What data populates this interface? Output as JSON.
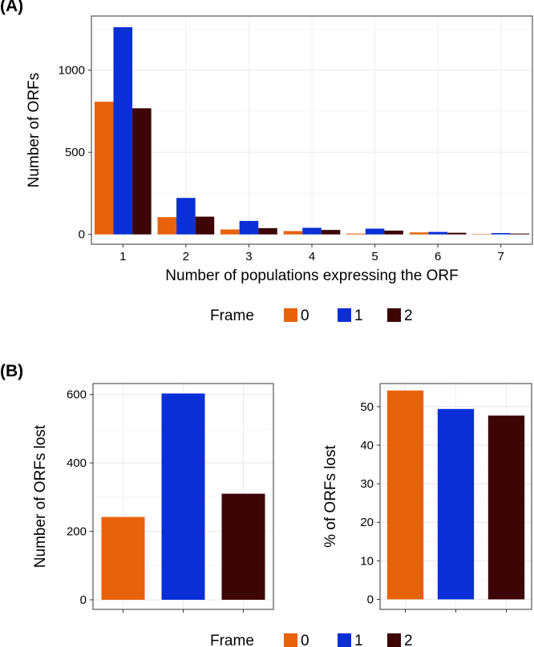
{
  "panel_a_label": "(A)",
  "panel_b_label": "(B)",
  "colors": {
    "frame0": "#e8620c",
    "frame1": "#0a2fd6",
    "frame2": "#3d0505"
  },
  "legend": {
    "title": "Frame",
    "labels": [
      "0",
      "1",
      "2"
    ]
  },
  "chart_data": [
    {
      "id": "A",
      "type": "bar",
      "xlabel": "Number of populations expressing the ORF",
      "ylabel": "Number of ORFs",
      "categories": [
        "1",
        "2",
        "3",
        "4",
        "5",
        "6",
        "7"
      ],
      "yticks": [
        0,
        500,
        1000
      ],
      "ylim": [
        -60,
        1330
      ],
      "series": [
        {
          "name": "0",
          "values": [
            808,
            105,
            30,
            20,
            5,
            12,
            2
          ]
        },
        {
          "name": "1",
          "values": [
            1262,
            222,
            82,
            40,
            35,
            15,
            8
          ]
        },
        {
          "name": "2",
          "values": [
            768,
            108,
            38,
            27,
            23,
            10,
            5
          ]
        }
      ]
    },
    {
      "id": "B1",
      "type": "bar",
      "xlabel": "",
      "ylabel": "Number of ORFs lost",
      "categories": [
        "0",
        "1",
        "2"
      ],
      "yticks": [
        0,
        200,
        400,
        600
      ],
      "ylim": [
        -28,
        632
      ],
      "values": [
        242,
        603,
        310
      ]
    },
    {
      "id": "B2",
      "type": "bar",
      "xlabel": "",
      "ylabel": "% of ORFs lost",
      "categories": [
        "0",
        "1",
        "2"
      ],
      "yticks": [
        0,
        10,
        20,
        30,
        40,
        50
      ],
      "ylim": [
        -2.6,
        56
      ],
      "values": [
        54.2,
        49.4,
        47.7
      ]
    }
  ]
}
